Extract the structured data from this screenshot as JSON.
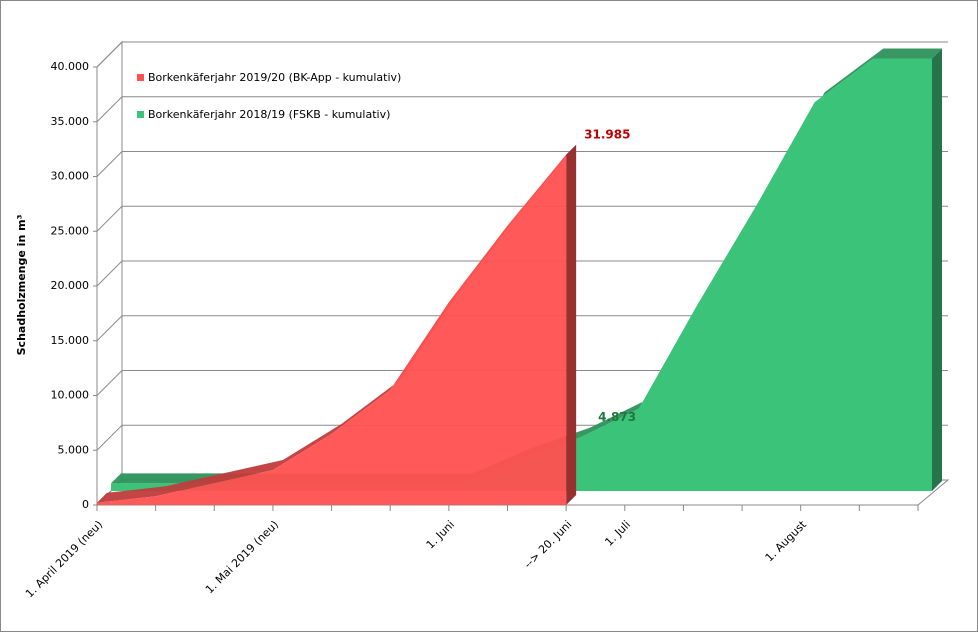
{
  "chart_data": {
    "type": "area3d",
    "y_label": "Schadholzmenge in m³",
    "categories": [
      "1. April 2019 (neu)",
      null,
      null,
      "1. Mai 2019 (neu)",
      null,
      null,
      "1. Juni",
      null,
      "--> 20. Juni",
      "1. Juli",
      null,
      null,
      "1. August",
      null,
      null
    ],
    "series": [
      {
        "name": "Borkenkäferjahr 2019/20 (BK-App - kumulativ)",
        "color": "#ff5050",
        "values": [
          200,
          800,
          2000,
          3200,
          6500,
          10500,
          18500,
          25500,
          31985,
          null,
          null,
          null,
          null,
          null,
          null
        ],
        "value_labels": [
          null,
          null,
          null,
          null,
          null,
          null,
          null,
          null,
          "31.985",
          null,
          null,
          null,
          null,
          null,
          null
        ],
        "label_color": "#c00000"
      },
      {
        "name": "Borkenkäferjahr 2018/19 (FSKB - kumulativ)",
        "color": "#3cc37a",
        "values": [
          700,
          700,
          700,
          700,
          700,
          700,
          700,
          3000,
          4873,
          7500,
          17000,
          26000,
          35500,
          39500,
          39500
        ],
        "value_labels": [
          null,
          null,
          null,
          null,
          null,
          null,
          null,
          null,
          "4.873",
          null,
          null,
          null,
          null,
          null,
          null
        ],
        "label_color": "#1e7a3c"
      }
    ],
    "ylim": [
      0,
      40000
    ],
    "yticks": [
      0,
      {
        "value": 5000,
        "label": "5.000"
      },
      {
        "value": 10000,
        "label": "10.000"
      },
      {
        "value": 15000,
        "label": "15.000"
      },
      {
        "value": 20000,
        "label": "20.000"
      },
      {
        "value": 25000,
        "label": "25.000"
      },
      {
        "value": 30000,
        "label": "30.000"
      },
      {
        "value": 35000,
        "label": "35.000"
      },
      {
        "value": 40000,
        "label": "40.000"
      }
    ],
    "grid": true
  }
}
